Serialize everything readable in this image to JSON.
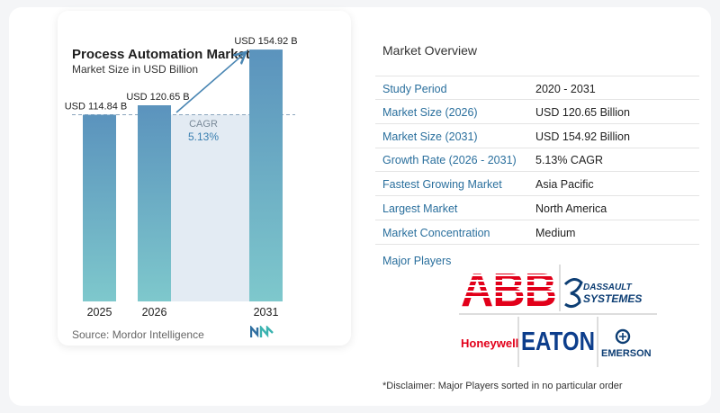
{
  "chart": {
    "title": "Process Automation Market",
    "subtitle": "Market Size in USD Billion",
    "source": "Source:  Mordor Intelligence",
    "cagr_label": "CAGR",
    "cagr_value": "5.13%"
  },
  "chart_data": {
    "type": "bar",
    "categories": [
      "2025",
      "2026",
      "2031"
    ],
    "values": [
      114.84,
      120.65,
      154.92
    ],
    "data_labels": [
      "USD 114.84 B",
      "USD 120.65 B",
      "USD 154.92 B"
    ],
    "title": "Process Automation Market",
    "subtitle": "Market Size in USD Billion",
    "xlabel": "",
    "ylabel": "",
    "ylim": [
      0,
      160
    ],
    "grid": false,
    "colors": {
      "bar_top": "#5b93bd",
      "bar_bottom": "#7ec8cc",
      "shade": "#e3ebf3",
      "arrow": "#4a86b3"
    }
  },
  "overview": {
    "title": "Market Overview",
    "rows": [
      {
        "key": "Study Period",
        "value": "2020 - 2031"
      },
      {
        "key": "Market Size (2026)",
        "value": "USD 120.65 Billion"
      },
      {
        "key": "Market Size (2031)",
        "value": "USD 154.92 Billion"
      },
      {
        "key": "Growth Rate (2026 - 2031)",
        "value": "5.13% CAGR"
      },
      {
        "key": "Fastest Growing Market",
        "value": "Asia Pacific"
      },
      {
        "key": "Largest Market",
        "value": "North America"
      },
      {
        "key": "Market Concentration",
        "value": "Medium"
      }
    ],
    "players_label": "Major Players",
    "players": [
      "ABB",
      "DASSAULT SYSTEMES",
      "Honeywell",
      "EATON",
      "EMERSON"
    ],
    "disclaimer": "*Disclaimer: Major Players sorted in no particular order"
  }
}
